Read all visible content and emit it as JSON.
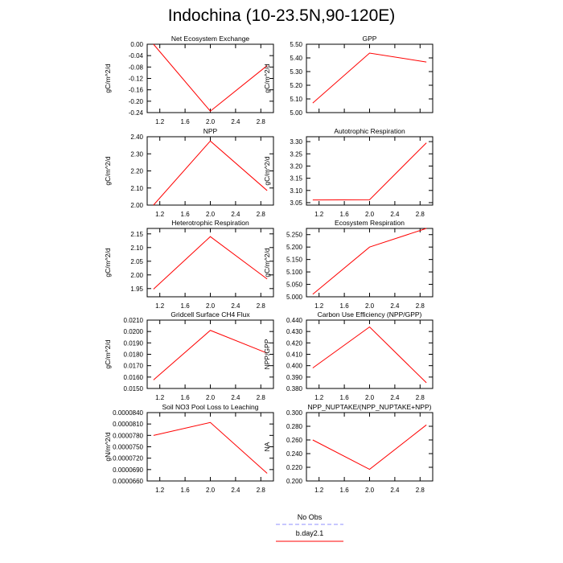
{
  "figure": {
    "title": "Indochina (10-23.5N,90-120E)",
    "legend": [
      {
        "label": "No Obs",
        "color": "#8f8fff",
        "dash": true
      },
      {
        "label": "b.day2.1",
        "color": "#ff0000",
        "dash": false
      }
    ]
  },
  "chart_data": [
    {
      "type": "line",
      "title": "Net Ecosystem Exchange",
      "ylabel": "gC/m^2/d",
      "x": [
        1.1,
        2.0,
        2.9
      ],
      "values": [
        0.0,
        -0.235,
        -0.075
      ],
      "xlim": [
        1.0,
        3.0
      ],
      "ylim": [
        -0.24,
        0.0
      ],
      "xticks": [
        1.2,
        1.6,
        2.0,
        2.4,
        2.8
      ],
      "xtick_labels": [
        "1.2",
        "1.6",
        "2.0",
        "2.4",
        "2.8"
      ],
      "yticks": [
        0.0,
        -0.04,
        -0.08,
        -0.12,
        -0.16,
        -0.2,
        -0.24
      ],
      "ytick_labels": [
        "0.00",
        "-0.04",
        "-0.08",
        "-0.12",
        "-0.16",
        "-0.20",
        "-0.24"
      ]
    },
    {
      "type": "line",
      "title": "GPP",
      "ylabel": "gC/m^2/d",
      "x": [
        1.1,
        2.0,
        2.9
      ],
      "values": [
        5.07,
        5.435,
        5.37
      ],
      "xlim": [
        1.0,
        3.0
      ],
      "ylim": [
        5.0,
        5.5
      ],
      "xticks": [
        1.2,
        1.6,
        2.0,
        2.4,
        2.8
      ],
      "xtick_labels": [],
      "yticks": [
        5.5,
        5.4,
        5.3,
        5.2,
        5.1,
        5.0
      ],
      "ytick_labels": [
        "5.50",
        "5.40",
        "5.30",
        "5.20",
        "5.10",
        "5.00"
      ]
    },
    {
      "type": "line",
      "title": "NPP",
      "ylabel": "gC/m^2/d",
      "x": [
        1.1,
        2.0,
        2.9
      ],
      "values": [
        2.0,
        2.375,
        2.085
      ],
      "xlim": [
        1.0,
        3.0
      ],
      "ylim": [
        2.0,
        2.4
      ],
      "xticks": [
        1.2,
        1.6,
        2.0,
        2.4,
        2.8
      ],
      "xtick_labels": [
        "1.2",
        "1.6",
        "2.0",
        "2.4",
        "2.8"
      ],
      "yticks": [
        2.4,
        2.3,
        2.2,
        2.1,
        2.0
      ],
      "ytick_labels": [
        "2.40",
        "2.30",
        "2.20",
        "2.10",
        "2.00"
      ]
    },
    {
      "type": "line",
      "title": "Autotrophic Respiration",
      "ylabel": "gC/m^2/d",
      "x": [
        1.1,
        2.0,
        2.9
      ],
      "values": [
        3.061,
        3.062,
        3.295
      ],
      "xlim": [
        1.0,
        3.0
      ],
      "ylim": [
        3.04,
        3.32
      ],
      "xticks": [
        1.2,
        1.6,
        2.0,
        2.4,
        2.8
      ],
      "xtick_labels": [
        "1.2",
        "1.6",
        "2.0",
        "2.4",
        "2.8"
      ],
      "yticks": [
        3.3,
        3.25,
        3.2,
        3.15,
        3.1,
        3.05
      ],
      "ytick_labels": [
        "3.30",
        "3.25",
        "3.20",
        "3.15",
        "3.10",
        "3.05"
      ]
    },
    {
      "type": "line",
      "title": "Heterotrophic Respiration",
      "ylabel": "gC/m^2/d",
      "x": [
        1.1,
        2.0,
        2.9
      ],
      "values": [
        1.948,
        2.14,
        1.985
      ],
      "xlim": [
        1.0,
        3.0
      ],
      "ylim": [
        1.92,
        2.17
      ],
      "xticks": [
        1.2,
        1.6,
        2.0,
        2.4,
        2.8
      ],
      "xtick_labels": [
        "1.2",
        "1.6",
        "2.0",
        "2.4",
        "2.8"
      ],
      "yticks": [
        2.15,
        2.1,
        2.05,
        2.0,
        1.95
      ],
      "ytick_labels": [
        "2.15",
        "2.10",
        "2.05",
        "2.00",
        "1.95"
      ]
    },
    {
      "type": "line",
      "title": "Ecosystem Respiration",
      "ylabel": "gC/m^2/d",
      "x": [
        1.1,
        2.0,
        2.9
      ],
      "values": [
        5.01,
        5.2,
        5.275
      ],
      "xlim": [
        1.0,
        3.0
      ],
      "ylim": [
        5.0,
        5.275
      ],
      "xticks": [
        1.2,
        1.6,
        2.0,
        2.4,
        2.8
      ],
      "xtick_labels": [
        "1.2",
        "1.6",
        "2.0",
        "2.4",
        "2.8"
      ],
      "yticks": [
        5.25,
        5.2,
        5.15,
        5.1,
        5.05,
        5.0
      ],
      "ytick_labels": [
        "5.250",
        "5.200",
        "5.150",
        "5.100",
        "5.050",
        "5.000"
      ]
    },
    {
      "type": "line",
      "title": "Gridcell Surface CH4 Flux",
      "ylabel": "gC/m^2/d",
      "x": [
        1.1,
        2.0,
        2.9
      ],
      "values": [
        0.01575,
        0.0201,
        0.0181
      ],
      "xlim": [
        1.0,
        3.0
      ],
      "ylim": [
        0.015,
        0.021
      ],
      "xticks": [
        1.2,
        1.6,
        2.0,
        2.4,
        2.8
      ],
      "xtick_labels": [
        "1.2",
        "1.6",
        "2.0",
        "2.4",
        "2.8"
      ],
      "yticks": [
        0.021,
        0.02,
        0.019,
        0.018,
        0.017,
        0.016,
        0.015
      ],
      "ytick_labels": [
        "0.0210",
        "0.0200",
        "0.0190",
        "0.0180",
        "0.0170",
        "0.0160",
        "0.0150"
      ]
    },
    {
      "type": "line",
      "title": "Carbon Use Efficiency (NPP/GPP)",
      "ylabel": "NPP/GPP",
      "x": [
        1.1,
        2.0,
        2.9
      ],
      "values": [
        0.398,
        0.434,
        0.385
      ],
      "xlim": [
        1.0,
        3.0
      ],
      "ylim": [
        0.38,
        0.44
      ],
      "xticks": [
        1.2,
        1.6,
        2.0,
        2.4,
        2.8
      ],
      "xtick_labels": [
        "1.2",
        "1.6",
        "2.0",
        "2.4",
        "2.8"
      ],
      "yticks": [
        0.44,
        0.43,
        0.42,
        0.41,
        0.4,
        0.39,
        0.38
      ],
      "ytick_labels": [
        "0.440",
        "0.430",
        "0.420",
        "0.410",
        "0.400",
        "0.390",
        "0.380"
      ]
    },
    {
      "type": "line",
      "title": "Soil NO3 Pool Loss to Leaching",
      "ylabel": "gN/m^2/d",
      "x": [
        1.1,
        2.0,
        2.9
      ],
      "values": [
        7.8e-05,
        8.14e-05,
        6.8e-05
      ],
      "xlim": [
        1.0,
        3.0
      ],
      "ylim": [
        6.6e-05,
        8.4e-05
      ],
      "xticks": [
        1.2,
        1.6,
        2.0,
        2.4,
        2.8
      ],
      "xtick_labels": [
        "1.2",
        "1.6",
        "2.0",
        "2.4",
        "2.8"
      ],
      "yticks": [
        8.4e-05,
        8.1e-05,
        7.8e-05,
        7.5e-05,
        7.2e-05,
        6.9e-05,
        6.6e-05
      ],
      "ytick_labels": [
        "0.0000840",
        "0.0000810",
        "0.0000780",
        "0.0000750",
        "0.0000720",
        "0.0000690",
        "0.0000660"
      ]
    },
    {
      "type": "line",
      "title": "NPP_NUPTAKE/(NPP_NUPTAKE+NPP)",
      "ylabel": "NA",
      "x": [
        1.1,
        2.0,
        2.9
      ],
      "values": [
        0.26,
        0.217,
        0.282
      ],
      "xlim": [
        1.0,
        3.0
      ],
      "ylim": [
        0.2,
        0.3
      ],
      "xticks": [
        1.2,
        1.6,
        2.0,
        2.4,
        2.8
      ],
      "xtick_labels": [
        "1.2",
        "1.6",
        "2.0",
        "2.4",
        "2.8"
      ],
      "yticks": [
        0.3,
        0.28,
        0.26,
        0.24,
        0.22,
        0.2
      ],
      "ytick_labels": [
        "0.300",
        "0.280",
        "0.260",
        "0.240",
        "0.220",
        "0.200"
      ]
    }
  ]
}
